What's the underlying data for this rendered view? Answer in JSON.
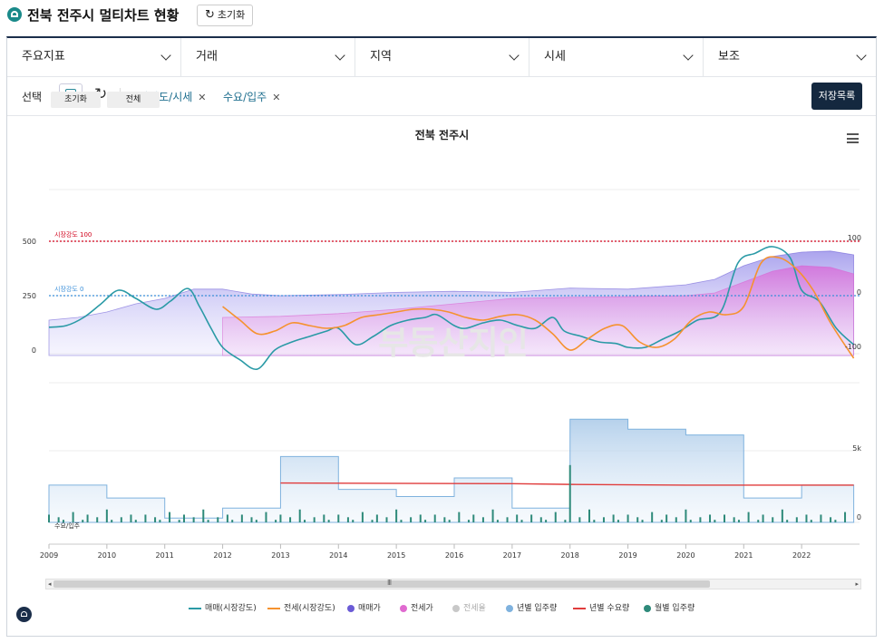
{
  "header": {
    "title": "전북 전주시 멀티차트 현황",
    "reset_label": "초기화"
  },
  "menus": [
    {
      "label": "주요지표"
    },
    {
      "label": "거래"
    },
    {
      "label": "지역"
    },
    {
      "label": "시세"
    },
    {
      "label": "보조"
    }
  ],
  "selection": {
    "label": "선택",
    "chips": [
      {
        "label": "시장강도/시세"
      },
      {
        "label": "수요/입주"
      }
    ],
    "save_list_label": "저장목록"
  },
  "chart": {
    "reset_label": "초기화",
    "all_label": "전체",
    "title": "전북 전주시",
    "watermark": "부동산지인"
  },
  "chart_data": {
    "type": "line",
    "x_range": [
      2009,
      2023
    ],
    "x_ticks": [
      "2009",
      "2010",
      "2011",
      "2012",
      "2013",
      "2014",
      "2015",
      "2016",
      "2017",
      "2018",
      "2019",
      "2020",
      "2021",
      "2022"
    ],
    "top_panel": {
      "left_axis_ticks": [
        "500",
        "250",
        "0"
      ],
      "right_axis_ticks": [
        "100",
        "0",
        "-100"
      ],
      "reference_lines": [
        {
          "label": "시장강도 100",
          "value": 100,
          "color": "#d0021b"
        },
        {
          "label": "시장강도 0",
          "value": 0,
          "color": "#3b8fd9"
        }
      ],
      "series": [
        {
          "name": "매매(시장강도)",
          "color": "#2a9aa6",
          "x": [
            2009.0,
            2009.3,
            2009.6,
            2009.9,
            2010.2,
            2010.5,
            2010.85,
            2011.1,
            2011.4,
            2011.6,
            2011.8,
            2012.0,
            2012.3,
            2012.6,
            2012.9,
            2013.2,
            2013.5,
            2013.8,
            2014.0,
            2014.3,
            2014.6,
            2014.9,
            2015.2,
            2015.5,
            2015.7,
            2016.0,
            2016.2,
            2016.5,
            2016.8,
            2017.1,
            2017.4,
            2017.7,
            2017.9,
            2018.2,
            2018.5,
            2018.8,
            2019.0,
            2019.3,
            2019.6,
            2019.9,
            2020.2,
            2020.6,
            2020.9,
            2021.2,
            2021.5,
            2021.8,
            2022.0,
            2022.3,
            2022.6,
            2022.9
          ],
          "values": [
            -58,
            -55,
            -40,
            -15,
            10,
            -5,
            -25,
            -10,
            13,
            -20,
            -60,
            -95,
            -118,
            -135,
            -100,
            -85,
            -75,
            -65,
            -60,
            -90,
            -75,
            -55,
            -45,
            -40,
            -35,
            -55,
            -60,
            -50,
            -45,
            -55,
            -60,
            -40,
            -65,
            -75,
            -85,
            -88,
            -95,
            -95,
            -80,
            -65,
            -45,
            -30,
            60,
            78,
            90,
            70,
            10,
            -10,
            -60,
            -90
          ]
        },
        {
          "name": "전세(시장강도)",
          "color": "#f5922f",
          "x": [
            2012.0,
            2012.3,
            2012.6,
            2012.9,
            2013.2,
            2013.5,
            2013.8,
            2014.1,
            2014.4,
            2014.7,
            2015.0,
            2015.3,
            2015.6,
            2015.9,
            2016.2,
            2016.5,
            2016.8,
            2017.1,
            2017.4,
            2017.7,
            2018.0,
            2018.3,
            2018.6,
            2018.9,
            2019.2,
            2019.5,
            2019.8,
            2020.1,
            2020.4,
            2020.7,
            2021.0,
            2021.3,
            2021.6,
            2021.9,
            2022.2,
            2022.5,
            2022.9
          ],
          "values": [
            -20,
            -45,
            -70,
            -65,
            -50,
            -55,
            -60,
            -55,
            -40,
            -35,
            -30,
            -25,
            -25,
            -30,
            -40,
            -45,
            -38,
            -35,
            -45,
            -70,
            -100,
            -80,
            -60,
            -55,
            -85,
            -95,
            -80,
            -45,
            -30,
            -35,
            -20,
            60,
            70,
            50,
            10,
            -50,
            -115
          ]
        }
      ],
      "areas": [
        {
          "name": "매매가",
          "color": "#6b5bd6"
        },
        {
          "name": "전세가",
          "color": "#e06ad0"
        }
      ]
    },
    "bottom_panel": {
      "left_axis_label": "수요/입주",
      "right_axis_ticks": [
        "5k",
        "0"
      ],
      "series": [
        {
          "name": "년별 입주량",
          "color": "#7fb2de",
          "x": [
            2009,
            2010,
            2011,
            2012,
            2013,
            2014,
            2015,
            2016,
            2017,
            2018,
            2019,
            2020,
            2021,
            2022
          ],
          "values": [
            2600,
            1700,
            300,
            1000,
            4600,
            2300,
            1800,
            3100,
            1000,
            7200,
            6500,
            6100,
            1700,
            2600
          ]
        },
        {
          "name": "년별 수요량",
          "color": "#e03c3c",
          "x": [
            2013,
            2017,
            2018,
            2020,
            2022.9
          ],
          "values": [
            2750,
            2700,
            2650,
            2600,
            2600
          ]
        },
        {
          "name": "월별 입주량",
          "color": "#2e8a7a"
        }
      ]
    },
    "legend": [
      {
        "label": "매매(시장강도)",
        "color": "#2a9aa6",
        "kind": "line"
      },
      {
        "label": "전세(시장강도)",
        "color": "#f5922f",
        "kind": "line"
      },
      {
        "label": "매매가",
        "color": "#6b5bd6",
        "kind": "dot"
      },
      {
        "label": "전세가",
        "color": "#e06ad0",
        "kind": "dot"
      },
      {
        "label": "전세율",
        "color": "#c8c8c8",
        "kind": "dot"
      },
      {
        "label": "년별 입주량",
        "color": "#7fb2de",
        "kind": "dot"
      },
      {
        "label": "년별 수요량",
        "color": "#e03c3c",
        "kind": "line"
      },
      {
        "label": "월별 입주량",
        "color": "#2e8a7a",
        "kind": "dot"
      }
    ]
  }
}
